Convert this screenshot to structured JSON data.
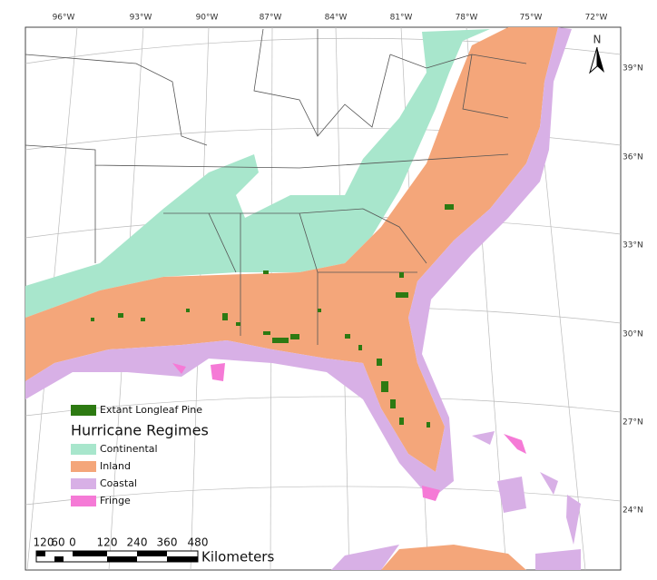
{
  "map": {
    "north_label": "N",
    "longitude_labels": [
      "96°W",
      "93°W",
      "90°W",
      "87°W",
      "84°W",
      "81°W",
      "78°W",
      "75°W",
      "72°W"
    ],
    "latitude_labels": [
      "39°N",
      "36°N",
      "33°N",
      "30°N",
      "27°N",
      "24°N"
    ],
    "legend": {
      "pine": {
        "label": "Extant Longleaf Pine",
        "color": "#2d7a12"
      },
      "title": "Hurricane Regimes",
      "regimes": [
        {
          "label": "Continental",
          "color": "#a8e6cc"
        },
        {
          "label": "Inland",
          "color": "#f4a67a"
        },
        {
          "label": "Coastal",
          "color": "#d8b0e6"
        },
        {
          "label": "Fringe",
          "color": "#f57ad6"
        }
      ]
    },
    "scale_bar": {
      "labels": [
        "120",
        "60",
        "0",
        "120",
        "240",
        "360",
        "480"
      ],
      "unit": "Kilometers"
    }
  }
}
